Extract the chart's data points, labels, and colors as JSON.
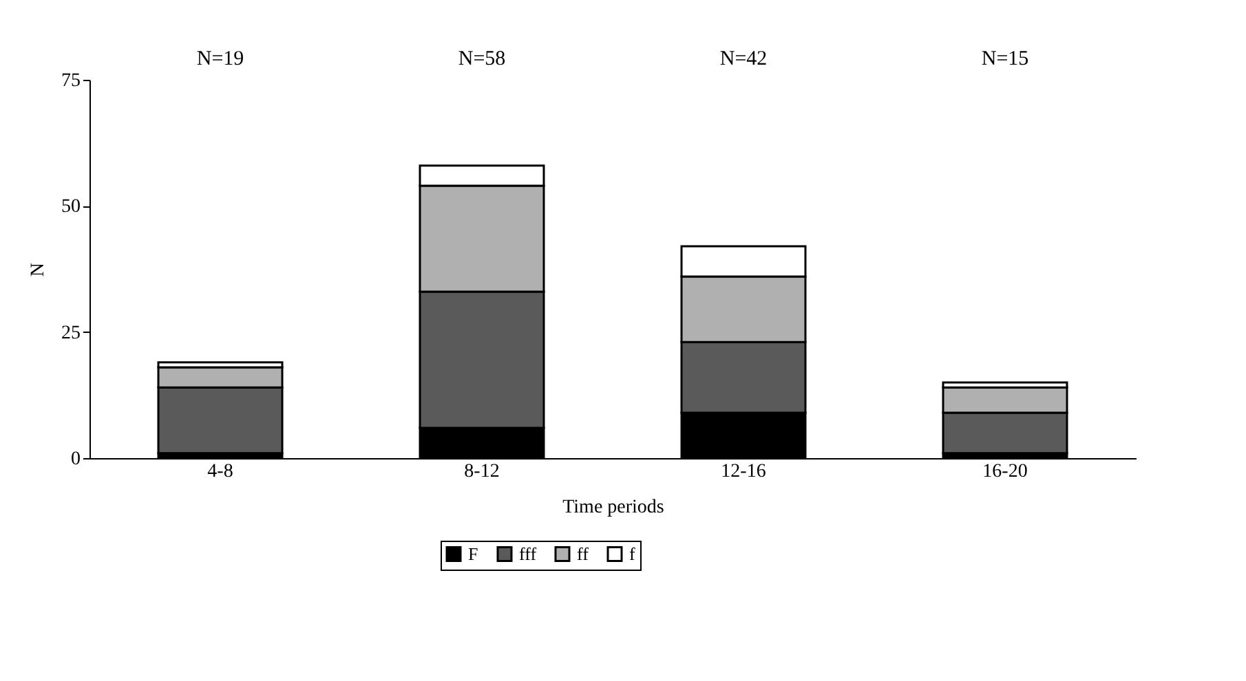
{
  "chart_data": {
    "type": "bar",
    "stacked": true,
    "xlabel": "Time periods",
    "ylabel": "N",
    "categories": [
      "4-8",
      "8-12",
      "12-16",
      "16-20"
    ],
    "series": [
      {
        "name": "F",
        "color": "#000000",
        "values": [
          1,
          6,
          9,
          1
        ]
      },
      {
        "name": "fff",
        "color": "#5a5a5a",
        "values": [
          13,
          27,
          14,
          8
        ]
      },
      {
        "name": "ff",
        "color": "#b0b0b0",
        "values": [
          4,
          21,
          13,
          5
        ]
      },
      {
        "name": "f",
        "color": "#ffffff",
        "values": [
          1,
          4,
          6,
          1
        ]
      }
    ],
    "annotations": [
      "N=19",
      "N=58",
      "N=42",
      "N=15"
    ],
    "ylim": [
      0,
      75
    ],
    "yticks": [
      0,
      25,
      50,
      75
    ],
    "grid": false,
    "legend": "bottom"
  }
}
